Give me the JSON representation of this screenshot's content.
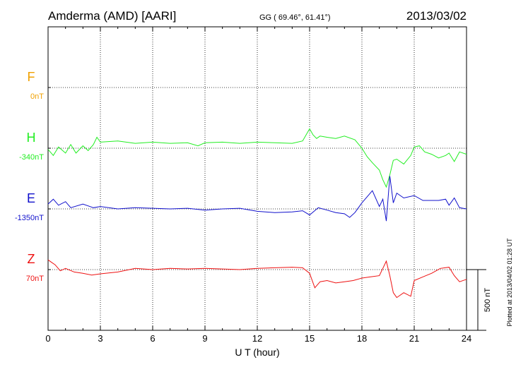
{
  "header": {
    "station": "Amderma (AMD)  [AARI]",
    "coords": "GG ( 69.46°,  61.41°)",
    "date": "2013/03/02"
  },
  "footer": {
    "plotted": "Plotted at 2013/04/02 01:28 UT"
  },
  "chart_data": {
    "type": "line",
    "xlabel": "U T (hour)",
    "xlim": [
      0,
      24
    ],
    "xticks": [
      "0",
      "3",
      "6",
      "9",
      "12",
      "15",
      "18",
      "21",
      "24"
    ],
    "scale_bar": "500 nT",
    "series": [
      {
        "name": "F",
        "baseline": "0nT",
        "color": "#f0a000",
        "x": [],
        "y": []
      },
      {
        "name": "H",
        "baseline": "-340nT",
        "color": "#22ee22",
        "x": [
          0,
          0.3,
          0.6,
          1,
          1.3,
          1.6,
          2,
          2.3,
          2.6,
          2.8,
          3,
          4,
          5,
          6,
          7,
          8,
          8.6,
          9,
          10,
          11,
          12,
          13,
          14,
          14.6,
          15,
          15.2,
          15.4,
          15.6,
          16,
          16.5,
          17,
          17.6,
          18,
          18.3,
          18.6,
          19,
          19.2,
          19.4,
          19.6,
          19.8,
          20,
          20.4,
          20.8,
          21,
          21.3,
          21.6,
          22,
          22.4,
          22.8,
          23,
          23.3,
          23.6,
          24
        ],
        "y": [
          -350,
          -400,
          -330,
          -380,
          -310,
          -380,
          -320,
          -360,
          -310,
          -250,
          -290,
          -280,
          -300,
          -290,
          -300,
          -295,
          -320,
          -295,
          -290,
          -300,
          -290,
          -295,
          -300,
          -280,
          -180,
          -230,
          -260,
          -240,
          -250,
          -260,
          -240,
          -270,
          -340,
          -410,
          -460,
          -520,
          -600,
          -660,
          -560,
          -440,
          -430,
          -470,
          -400,
          -330,
          -320,
          -370,
          -390,
          -420,
          -400,
          -380,
          -450,
          -370,
          -390
        ]
      },
      {
        "name": "E",
        "baseline": "-1350nT",
        "color": "#1010cc",
        "x": [
          0,
          0.3,
          0.6,
          1,
          1.3,
          2,
          2.6,
          3,
          4,
          5,
          6,
          7,
          8,
          9,
          10,
          11,
          12,
          13,
          14,
          14.6,
          15,
          15.5,
          16,
          16.5,
          17,
          17.3,
          17.6,
          18,
          18.3,
          18.6,
          19,
          19.2,
          19.4,
          19.6,
          19.8,
          20,
          20.4,
          21,
          21.5,
          22,
          22.4,
          22.8,
          23,
          23.3,
          23.6,
          24
        ],
        "y": [
          -1310,
          -1270,
          -1320,
          -1290,
          -1340,
          -1310,
          -1340,
          -1330,
          -1350,
          -1340,
          -1345,
          -1350,
          -1345,
          -1360,
          -1350,
          -1345,
          -1370,
          -1380,
          -1375,
          -1365,
          -1400,
          -1340,
          -1360,
          -1380,
          -1390,
          -1420,
          -1380,
          -1300,
          -1250,
          -1200,
          -1330,
          -1270,
          -1450,
          -1080,
          -1300,
          -1220,
          -1260,
          -1240,
          -1280,
          -1280,
          -1280,
          -1270,
          -1320,
          -1260,
          -1340,
          -1350
        ]
      },
      {
        "name": "Z",
        "baseline": "70nT",
        "color": "#ee1111",
        "x": [
          0,
          0.2,
          0.4,
          0.7,
          1,
          1.5,
          2,
          2.5,
          3,
          4,
          5,
          6,
          7,
          8,
          9,
          10,
          11,
          12,
          13,
          14,
          14.6,
          15,
          15.3,
          15.6,
          16,
          16.5,
          17,
          17.5,
          18,
          18.5,
          19,
          19.2,
          19.4,
          19.6,
          19.8,
          20,
          20.4,
          20.8,
          21,
          21.5,
          22,
          22.5,
          23,
          23.3,
          23.6,
          24
        ],
        "y": [
          150,
          130,
          110,
          60,
          80,
          50,
          40,
          25,
          35,
          50,
          80,
          70,
          80,
          75,
          80,
          75,
          70,
          80,
          85,
          90,
          85,
          40,
          -80,
          -30,
          -20,
          -40,
          -30,
          -20,
          0,
          10,
          20,
          80,
          140,
          20,
          -120,
          -160,
          -120,
          -150,
          -20,
          10,
          40,
          80,
          90,
          20,
          -30,
          -10
        ]
      }
    ]
  }
}
